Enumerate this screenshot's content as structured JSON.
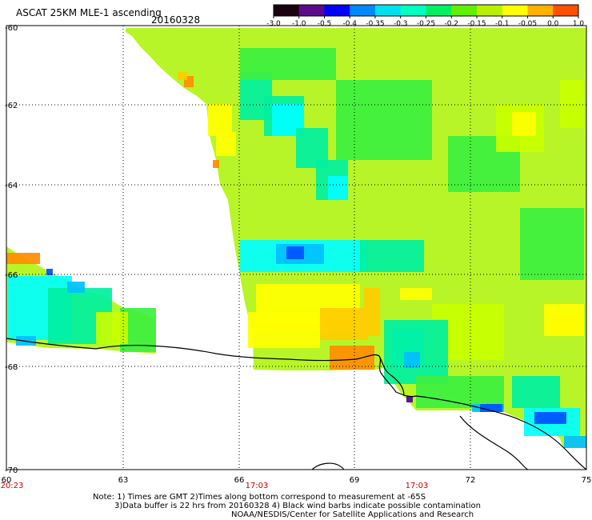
{
  "header": {
    "title": "ASCAT 25KM MLE-1 ascending",
    "date": "20160328"
  },
  "colorbar": {
    "labels": [
      "-3.0",
      "-1.0",
      "-0.5",
      "-0.4",
      "-0.35",
      "-0.3",
      "-0.25",
      "-0.2",
      "-0.15",
      "-0.1",
      "-0.05",
      "0.0",
      "1.0"
    ],
    "colors": [
      "#1a0010",
      "#5a0a8a",
      "#0000ff",
      "#0088ff",
      "#00e0f0",
      "#00ffc0",
      "#00f060",
      "#60f000",
      "#b8f000",
      "#ffff00",
      "#ffb000",
      "#ff5000",
      "#ff0000"
    ]
  },
  "axes": {
    "y_labels": [
      "-60",
      "-62",
      "-64",
      "-66",
      "-68",
      "-70"
    ],
    "x_labels": [
      "60",
      "63",
      "66",
      "69",
      "72",
      "75"
    ],
    "time_labels": [
      "20:23",
      "17:03",
      "17:03"
    ],
    "time_color": "#d00000"
  },
  "notes": [
    "Note: 1) Times are GMT 2)Times along bottom correspond to measurement at -65S",
    "3)Data buffer is 22 hrs from 20160328 4) Black wind barbs indicate possible contamination",
    "NOAA/NESDIS/Center for Satellite Applications and Research"
  ],
  "palette": {
    "orange": "#ff8c00",
    "yellow_orange": "#ffcc00",
    "yellow": "#ffff00",
    "yellow_green": "#c8ff00",
    "light_green": "#90ff00",
    "green": "#3cf040",
    "cyan_green": "#00f0a0",
    "cyan": "#00ffff",
    "light_blue": "#00c0ff",
    "blue": "#0050ff",
    "deep_blue": "#0000e0",
    "purple": "#5000a0"
  }
}
